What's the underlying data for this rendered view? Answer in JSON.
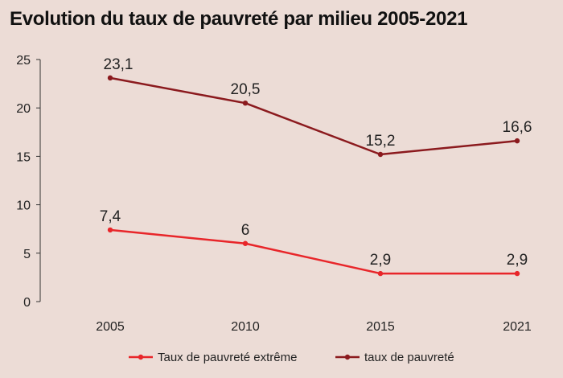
{
  "chart_data": {
    "type": "line",
    "title": "Evolution du taux de pauvreté par milieu 2005-2021",
    "xlabel": "",
    "ylabel": "",
    "categories": [
      "2005",
      "2010",
      "2015",
      "2021"
    ],
    "ylim": [
      0,
      25
    ],
    "yticks": [
      0,
      5,
      10,
      15,
      20,
      25
    ],
    "grid": false,
    "legend_position": "bottom",
    "series": [
      {
        "name": "Taux de pauvreté extrême",
        "values": [
          7.4,
          6,
          2.9,
          2.9
        ],
        "labels": [
          "7,4",
          "6",
          "2,9",
          "2,9"
        ],
        "color": "#e8262a"
      },
      {
        "name": "taux de pauvreté",
        "values": [
          23.1,
          20.5,
          15.2,
          16.6
        ],
        "labels": [
          "23,1",
          "20,5",
          "15,2",
          "16,6"
        ],
        "color": "#8b1a1e"
      }
    ]
  }
}
